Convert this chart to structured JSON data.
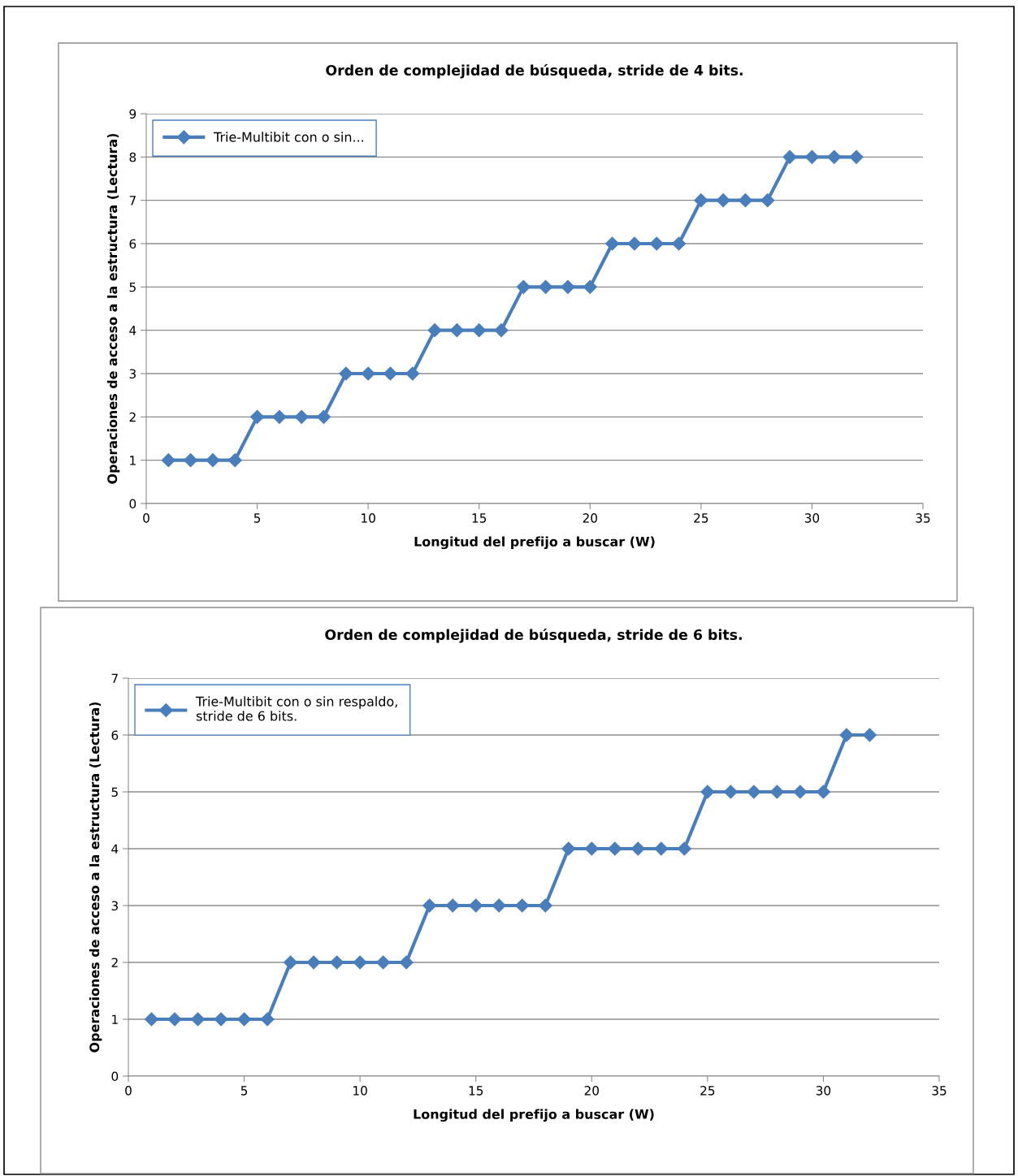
{
  "chart_data": [
    {
      "type": "line",
      "title": "Orden de complejidad de búsqueda, stride de 4 bits.",
      "xlabel": "Longitud del prefijo a buscar (W)",
      "ylabel": "Operaciones de acceso a la estructura (Lectura)",
      "x": [
        1,
        2,
        3,
        4,
        5,
        6,
        7,
        8,
        9,
        10,
        11,
        12,
        13,
        14,
        15,
        16,
        17,
        18,
        19,
        20,
        21,
        22,
        23,
        24,
        25,
        26,
        27,
        28,
        29,
        30,
        31,
        32
      ],
      "series": [
        {
          "name": "Trie-Multibit con o sin...",
          "color": "#4a7ebb",
          "values": [
            1,
            1,
            1,
            1,
            2,
            2,
            2,
            2,
            3,
            3,
            3,
            3,
            4,
            4,
            4,
            4,
            5,
            5,
            5,
            5,
            6,
            6,
            6,
            6,
            7,
            7,
            7,
            7,
            8,
            8,
            8,
            8
          ]
        }
      ],
      "xlim": [
        0,
        35
      ],
      "xticks": [
        0,
        5,
        10,
        15,
        20,
        25,
        30,
        35
      ],
      "ylim": [
        0,
        9
      ],
      "yticks": [
        0,
        1,
        2,
        3,
        4,
        5,
        6,
        7,
        8,
        9
      ],
      "grid": "y",
      "legend": "top left",
      "marker": "diamond",
      "line_style": "solid"
    },
    {
      "type": "line",
      "title": "Orden de complejidad de búsqueda, stride de 6 bits.",
      "xlabel": "Longitud del prefijo a buscar (W)",
      "ylabel": "Operaciones de acceso a la estructura (Lectura)",
      "x": [
        1,
        2,
        3,
        4,
        5,
        6,
        7,
        8,
        9,
        10,
        11,
        12,
        13,
        14,
        15,
        16,
        17,
        18,
        19,
        20,
        21,
        22,
        23,
        24,
        25,
        26,
        27,
        28,
        29,
        30,
        31,
        32
      ],
      "series": [
        {
          "name": "Trie-Multibit con o sin respaldo,\nstride de 6 bits.",
          "color": "#4a7ebb",
          "values": [
            1,
            1,
            1,
            1,
            1,
            1,
            2,
            2,
            2,
            2,
            2,
            2,
            3,
            3,
            3,
            3,
            3,
            3,
            4,
            4,
            4,
            4,
            4,
            4,
            5,
            5,
            5,
            5,
            5,
            5,
            6,
            6
          ]
        }
      ],
      "xlim": [
        0,
        35
      ],
      "xticks": [
        0,
        5,
        10,
        15,
        20,
        25,
        30,
        35
      ],
      "ylim": [
        0,
        7
      ],
      "yticks": [
        0,
        1,
        2,
        3,
        4,
        5,
        6,
        7
      ],
      "grid": "y",
      "legend": "top left",
      "marker": "diamond",
      "line_style": "solid"
    }
  ]
}
